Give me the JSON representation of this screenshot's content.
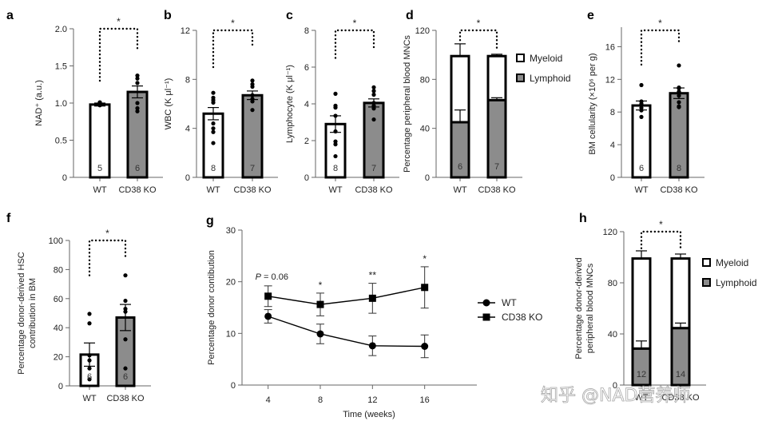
{
  "colors": {
    "wt_fill": "#ffffff",
    "ko_fill": "#8c8c8c",
    "stroke": "#000000",
    "axis": "#666666"
  },
  "watermark": "知乎 @NAD营养师",
  "chart_data": [
    {
      "panel": "a",
      "type": "bar",
      "title": "",
      "categories": [
        "WT",
        "CD38 KO"
      ],
      "values": [
        0.98,
        1.15
      ],
      "sem": [
        0.02,
        0.08
      ],
      "n": [
        "5",
        "6"
      ],
      "points": [
        [
          0.97,
          0.98,
          0.99,
          1.0,
          1.01
        ],
        [
          0.89,
          0.93,
          1.0,
          1.27,
          1.33,
          1.37
        ]
      ],
      "ylabel": "NAD⁺ (a.u.)",
      "ylim": [
        0,
        2.0
      ],
      "yticks": [
        "0",
        "0.5",
        "1.0",
        "1.5",
        "2.0"
      ],
      "ytick_values": [
        0,
        0.5,
        1.0,
        1.5,
        2.0
      ],
      "significance": "*",
      "bracket_top": 2.0,
      "bracket_left_end": 1.3,
      "bracket_right_end": 1.72
    },
    {
      "panel": "b",
      "type": "bar",
      "categories": [
        "WT",
        "CD38 KO"
      ],
      "values": [
        5.2,
        6.7
      ],
      "sem": [
        0.5,
        0.35
      ],
      "n": [
        "8",
        "7"
      ],
      "points": [
        [
          2.8,
          3.7,
          4.0,
          4.4,
          6.1,
          6.3,
          6.5,
          6.9
        ],
        [
          5.5,
          6.2,
          6.4,
          6.7,
          7.4,
          7.6,
          7.9
        ]
      ],
      "ylabel": "WBC (K μl⁻¹)",
      "ylim": [
        0,
        12
      ],
      "yticks": [
        "0",
        "4",
        "8",
        "12"
      ],
      "ytick_values": [
        0,
        4,
        8,
        12
      ],
      "significance": "*",
      "bracket_top": 12,
      "bracket_left_end": 9.0,
      "bracket_right_end": 10.8
    },
    {
      "panel": "c",
      "type": "bar",
      "categories": [
        "WT",
        "CD38 KO"
      ],
      "values": [
        2.9,
        4.05
      ],
      "sem": [
        0.45,
        0.22
      ],
      "n": [
        "8",
        "7"
      ],
      "points": [
        [
          1.15,
          1.8,
          1.95,
          2.5,
          3.35,
          3.8,
          3.9,
          4.55
        ],
        [
          3.15,
          3.75,
          3.9,
          4.05,
          4.5,
          4.7,
          4.9
        ]
      ],
      "ylabel": "Lymphocyte (K μl⁻¹)",
      "ylim": [
        0,
        8
      ],
      "yticks": [
        "0",
        "2",
        "4",
        "6",
        "8"
      ],
      "ytick_values": [
        0,
        2,
        4,
        6,
        8
      ],
      "significance": "*",
      "bracket_top": 8,
      "bracket_left_end": 6.5,
      "bracket_right_end": 6.9
    },
    {
      "panel": "d",
      "type": "stacked-bar",
      "categories": [
        "WT",
        "CD38 KO"
      ],
      "series": [
        {
          "name": "Lymphoid",
          "values": [
            45,
            63
          ],
          "sem": [
            10,
            2
          ]
        },
        {
          "name": "Myeloid",
          "values": [
            54,
            36
          ],
          "sem": [
            10,
            1.5
          ]
        }
      ],
      "n": [
        "6",
        "7"
      ],
      "ylabel": "Percentage peripheral blood MNCs",
      "ylim": [
        0,
        120
      ],
      "yticks": [
        "0",
        "40",
        "80",
        "120"
      ],
      "ytick_values": [
        0,
        40,
        80,
        120
      ],
      "legend": [
        "Myeloid",
        "Lymphoid"
      ],
      "legend_position": "right",
      "significance": "*",
      "bracket_top": 120,
      "bracket_left_end": 112,
      "bracket_right_end": 103
    },
    {
      "panel": "e",
      "type": "bar",
      "categories": [
        "WT",
        "CD38 KO"
      ],
      "values": [
        8.8,
        10.3
      ],
      "sem": [
        0.55,
        0.65
      ],
      "n": [
        "6",
        "8"
      ],
      "points": [
        [
          7.4,
          8.2,
          8.5,
          9.0,
          9.3,
          11.3
        ],
        [
          8.6,
          8.7,
          9.2,
          10.0,
          10.5,
          10.9,
          11.0,
          13.7
        ]
      ],
      "ylabel": "BM cellularity (×10⁶ per g)",
      "ylim": [
        0,
        18
      ],
      "yticks": [
        "0",
        "4",
        "8",
        "12",
        "16"
      ],
      "ytick_values": [
        0,
        4,
        8,
        12,
        16
      ],
      "significance": "*",
      "bracket_top": 18,
      "bracket_left_end": 13.8,
      "bracket_right_end": 16.5
    },
    {
      "panel": "f",
      "type": "bar",
      "categories": [
        "WT",
        "CD38 KO"
      ],
      "values": [
        21.5,
        47
      ],
      "sem": [
        8,
        9
      ],
      "n": [
        "6",
        "6"
      ],
      "points": [
        [
          4.5,
          12,
          17.5,
          21,
          43,
          49.5
        ],
        [
          12,
          32,
          51,
          53,
          58.5,
          76
        ]
      ],
      "ylabel": "Percentage donor-derived HSC contribution in BM",
      "ylabel_lines": [
        "Percentage donor-derived HSC",
        "contribution in BM"
      ],
      "ylim": [
        0,
        100
      ],
      "yticks": [
        "0",
        "20",
        "40",
        "60",
        "80",
        "100"
      ],
      "ytick_values": [
        0,
        20,
        40,
        60,
        80,
        100
      ],
      "significance": "*",
      "bracket_top": 100,
      "bracket_left_end": 76,
      "bracket_right_end": 87
    },
    {
      "panel": "g",
      "type": "line",
      "x": [
        4,
        8,
        12,
        16
      ],
      "xticks": [
        "4",
        "8",
        "12",
        "16"
      ],
      "xlim": [
        2,
        20
      ],
      "series": [
        {
          "name": "WT",
          "marker": "circle",
          "values": [
            13.3,
            9.9,
            7.6,
            7.5
          ],
          "err": [
            1.3,
            1.9,
            1.9,
            2.2
          ]
        },
        {
          "name": "CD38 KO",
          "marker": "square",
          "values": [
            17.2,
            15.6,
            16.8,
            18.9
          ],
          "err": [
            2.0,
            2.2,
            2.9,
            4.0
          ]
        }
      ],
      "annotations": [
        {
          "x": 4,
          "text": "P = 0.06",
          "p_italic": "P",
          "p_rest": " = 0.06"
        },
        {
          "x": 8,
          "text": "*"
        },
        {
          "x": 12,
          "text": "**"
        },
        {
          "x": 16,
          "text": "*"
        }
      ],
      "xlabel": "Time (weeks)",
      "ylabel": "Percentage donor contibution",
      "ylim": [
        0,
        30
      ],
      "yticks": [
        "0",
        "10",
        "20",
        "30"
      ],
      "ytick_values": [
        0,
        10,
        20,
        30
      ],
      "legend": [
        "WT",
        "CD38 KO"
      ],
      "legend_position": "right"
    },
    {
      "panel": "h",
      "type": "stacked-bar",
      "categories": [
        "WT",
        "CD38 KO"
      ],
      "series": [
        {
          "name": "Lymphoid",
          "values": [
            28.5,
            44.5
          ],
          "sem": [
            6,
            4
          ]
        },
        {
          "name": "Myeloid",
          "values": [
            70.5,
            54.5
          ],
          "sem": [
            6,
            3.5
          ]
        }
      ],
      "n": [
        "12",
        "14"
      ],
      "ylabel": "Percentage donor-derived peripheral blood MNCs",
      "ylabel_lines": [
        "Percentage donor-derived",
        "peripheral blood MNCs"
      ],
      "ylim": [
        0,
        120
      ],
      "yticks": [
        "0",
        "40",
        "80",
        "120"
      ],
      "ytick_values": [
        0,
        40,
        80,
        120
      ],
      "legend": [
        "Myeloid",
        "Lymphoid"
      ],
      "legend_position": "right",
      "significance": "*",
      "bracket_top": 120,
      "bracket_left_end": 107,
      "bracket_right_end": 105
    }
  ]
}
